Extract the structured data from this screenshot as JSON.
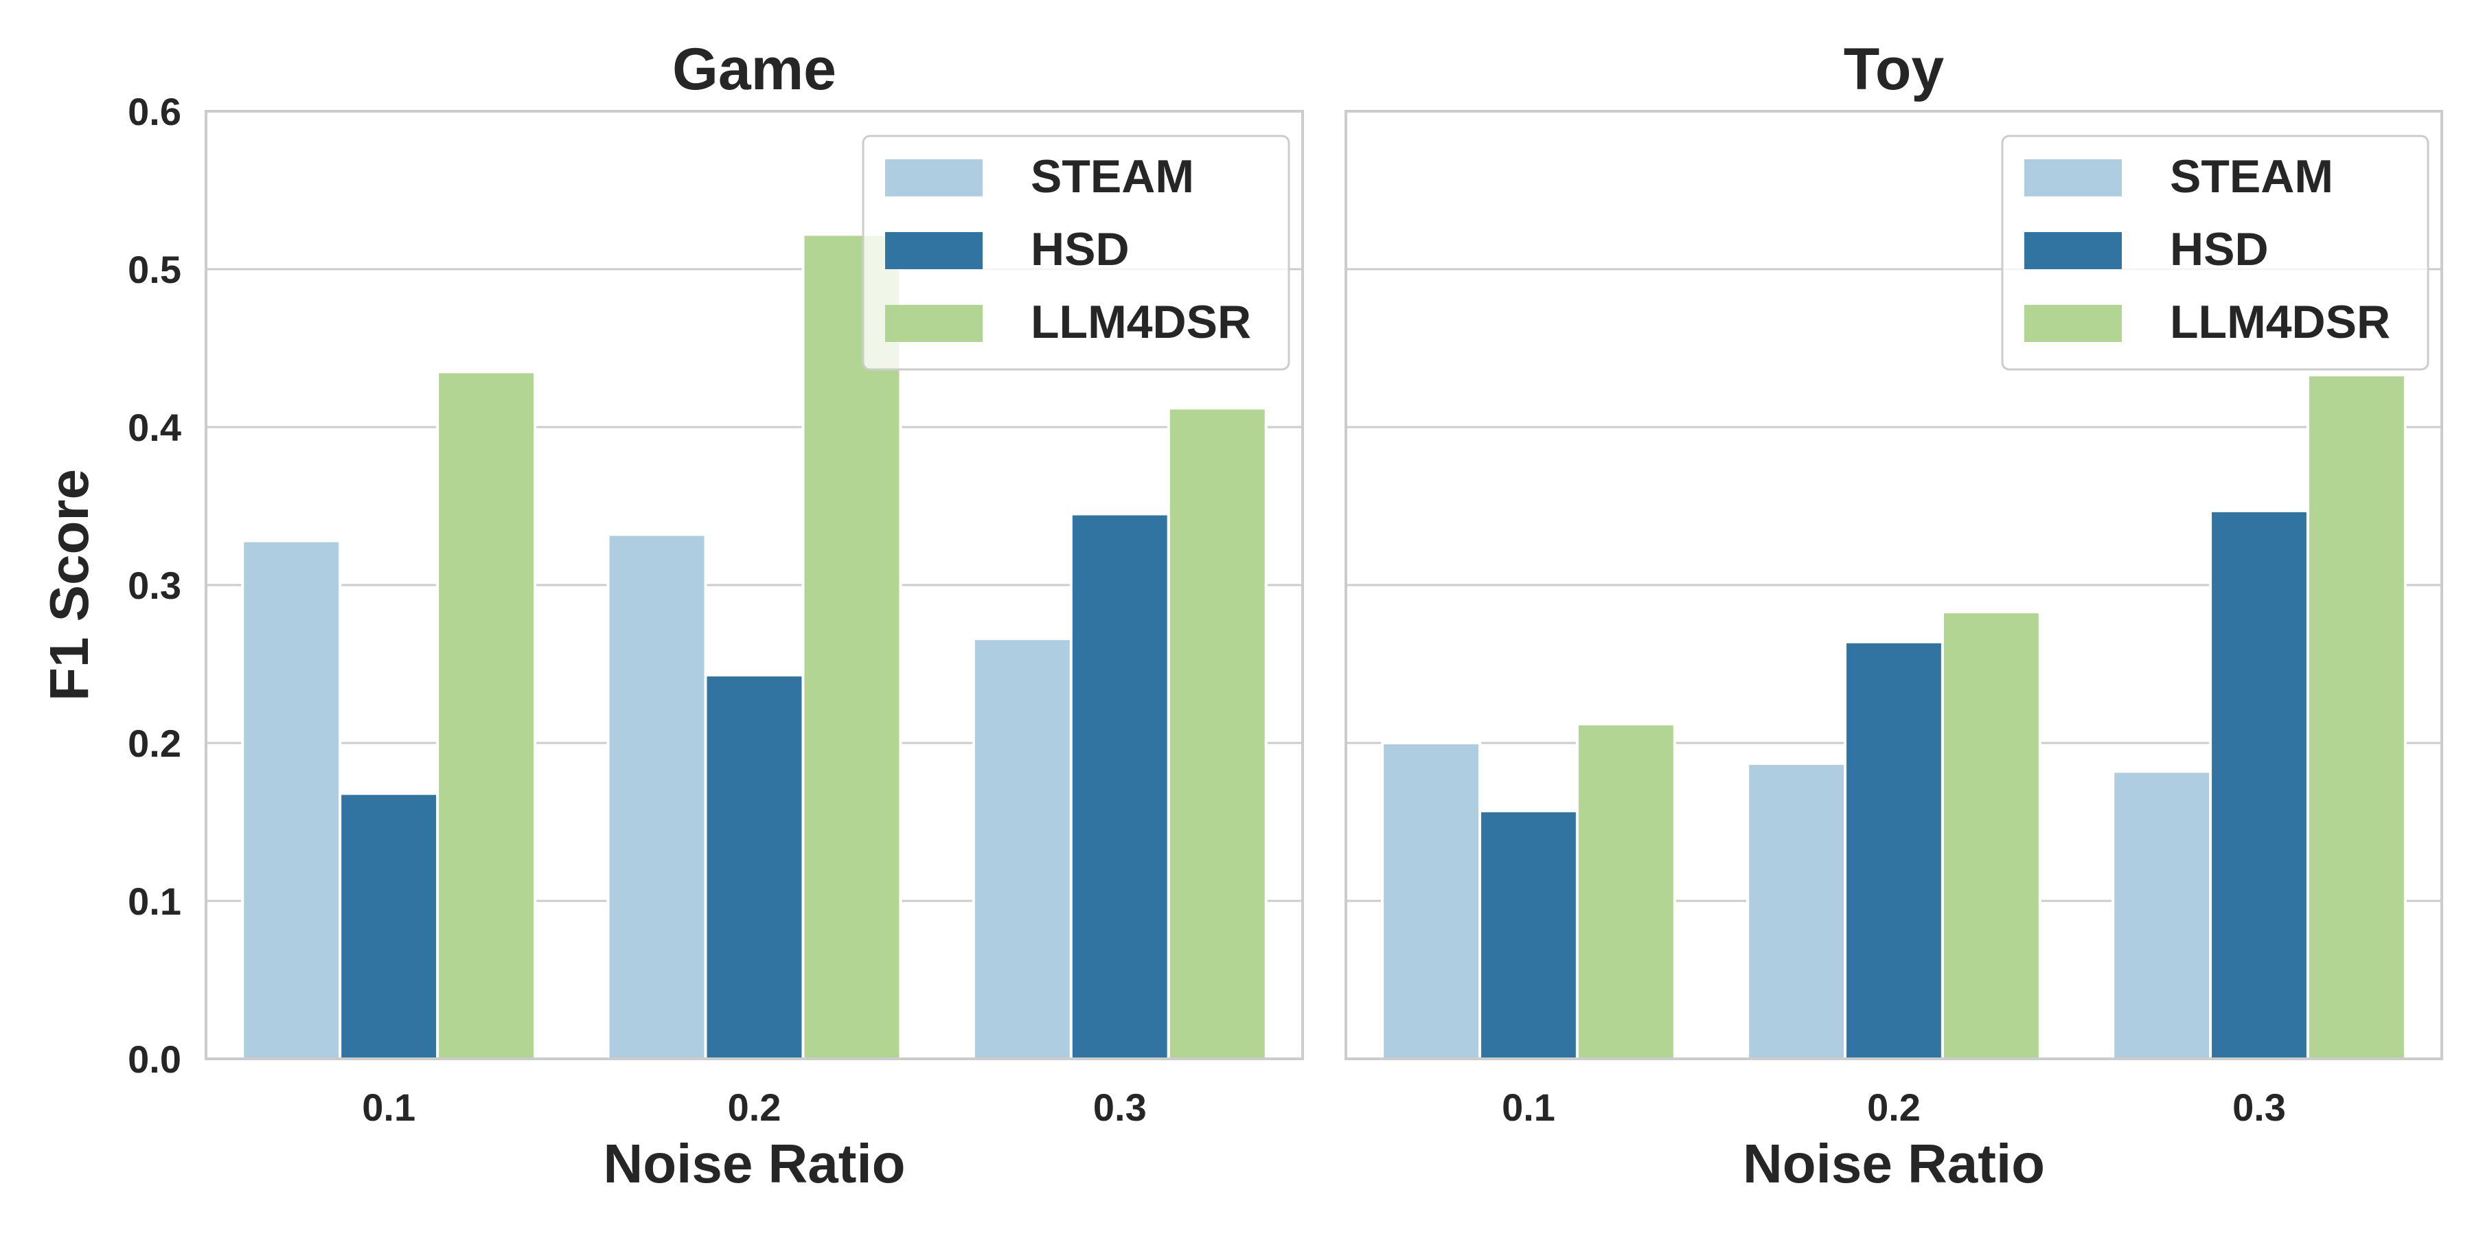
{
  "chart_data": [
    {
      "type": "bar",
      "title": "Game",
      "xlabel": "Noise Ratio",
      "ylabel": "F1 Score",
      "categories": [
        "0.1",
        "0.2",
        "0.3"
      ],
      "series": [
        {
          "name": "STEAM",
          "color": "#aecde1",
          "values": [
            0.328,
            0.332,
            0.266
          ]
        },
        {
          "name": "HSD",
          "color": "#3274a1",
          "values": [
            0.168,
            0.243,
            0.345
          ]
        },
        {
          "name": "LLM4DSR",
          "color": "#b3d593",
          "values": [
            0.435,
            0.522,
            0.412
          ]
        }
      ],
      "ylim": [
        0,
        0.6
      ],
      "yticks": [
        "0.0",
        "0.1",
        "0.2",
        "0.3",
        "0.4",
        "0.5",
        "0.6"
      ],
      "grid": "horizontal",
      "legend": "top-right"
    },
    {
      "type": "bar",
      "title": "Toy",
      "xlabel": "Noise Ratio",
      "ylabel": "",
      "categories": [
        "0.1",
        "0.2",
        "0.3"
      ],
      "series": [
        {
          "name": "STEAM",
          "color": "#aecde1",
          "values": [
            0.2,
            0.187,
            0.182
          ]
        },
        {
          "name": "HSD",
          "color": "#3274a1",
          "values": [
            0.157,
            0.264,
            0.347
          ]
        },
        {
          "name": "LLM4DSR",
          "color": "#b3d593",
          "values": [
            0.212,
            0.283,
            0.433
          ]
        }
      ],
      "ylim": [
        0,
        0.6
      ],
      "yticks": [
        "0.0",
        "0.1",
        "0.2",
        "0.3",
        "0.4",
        "0.5",
        "0.6"
      ],
      "grid": "horizontal",
      "legend": "top-right"
    }
  ],
  "colors": {
    "grid": "#cccccc",
    "frame": "#cccccc",
    "bar_edge": "#ffffff"
  }
}
